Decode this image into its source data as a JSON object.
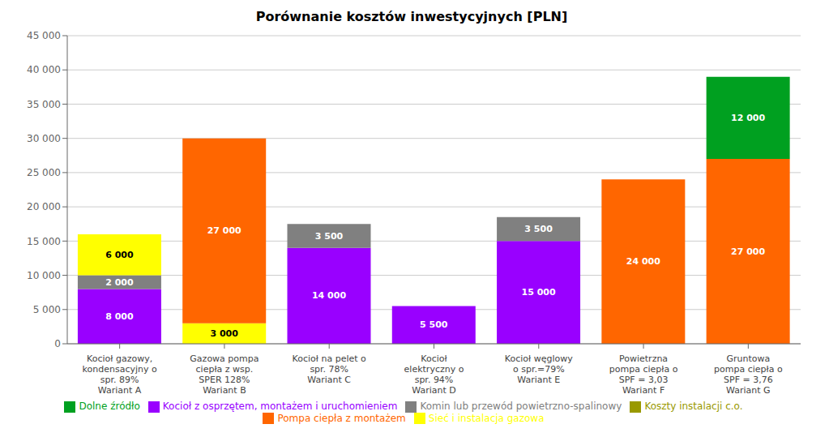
{
  "chart_data": {
    "type": "bar",
    "title": "Porównanie kosztów inwestycyjnych [PLN]",
    "stacked": true,
    "grid": true,
    "legend": "bottom",
    "data_labels": true,
    "categories": [
      "Kocioł gazowy,\nkondensacyjny o\nspr. 89%\nWariant A",
      "Gazowa pompa\nciepła z wsp.\nSPER 128%\nWariant B",
      "Kocioł na pelet o\nspr. 78%\nWariant C",
      "Kocioł\nelektryczny o\nspr. 94%\nWariant D",
      "Kocioł węglowy\no spr.=79%\nWariant E",
      "Powietrzna\npompa ciepła o\nSPF = 3,03\nWariant F",
      "Gruntowa\npompa ciepła o\nSPF = 3,76\nWariant G"
    ],
    "series": [
      {
        "name": "Kocioł z osprzętem, montażem i uruchomieniem",
        "color": "#9900FF",
        "values": [
          8000,
          0,
          14000,
          5500,
          15000,
          0,
          0
        ],
        "value_labels": [
          "8 000",
          null,
          "14 000",
          "5 500",
          "15 000",
          null,
          null
        ]
      },
      {
        "name": "Komin lub przewód powietrzno-spalinowy",
        "color": "#808080",
        "values": [
          2000,
          0,
          3500,
          0,
          3500,
          0,
          0
        ],
        "value_labels": [
          "2 000",
          null,
          "3 500",
          null,
          "3 500",
          null,
          null
        ]
      },
      {
        "name": "Sieć i instalacja gazowa",
        "color": "#FFFF00",
        "values": [
          6000,
          3000,
          0,
          0,
          0,
          0,
          0
        ],
        "value_labels": [
          "6 000",
          "3 000",
          null,
          null,
          null,
          null,
          null
        ]
      },
      {
        "name": "Koszty instalacji c.o.",
        "color": "#999900",
        "values": [
          0,
          0,
          0,
          0,
          0,
          0,
          0
        ],
        "value_labels": [
          null,
          null,
          null,
          null,
          null,
          null,
          null
        ]
      },
      {
        "name": "Pompa ciepła z montażem",
        "color": "#FF6600",
        "values": [
          0,
          27000,
          0,
          0,
          0,
          24000,
          27000
        ],
        "value_labels": [
          null,
          "27 000",
          null,
          null,
          null,
          "24 000",
          "27 000"
        ]
      },
      {
        "name": "Dolne źródło",
        "color": "#00A020",
        "values": [
          0,
          0,
          0,
          0,
          0,
          0,
          12000
        ],
        "value_labels": [
          null,
          null,
          null,
          null,
          null,
          null,
          "12 000"
        ]
      }
    ],
    "ylim": [
      0,
      45000
    ],
    "yticks": [
      0,
      {
        "value": 5000,
        "label": "5 000"
      },
      {
        "value": 10000,
        "label": "10 000"
      },
      {
        "value": 15000,
        "label": "15 000"
      },
      {
        "value": 20000,
        "label": "20 000"
      },
      {
        "value": 25000,
        "label": "25 000"
      },
      {
        "value": 30000,
        "label": "30 000"
      },
      {
        "value": 35000,
        "label": "35 000"
      },
      {
        "value": 40000,
        "label": "40 000"
      },
      {
        "value": 45000,
        "label": "45 000"
      }
    ]
  }
}
